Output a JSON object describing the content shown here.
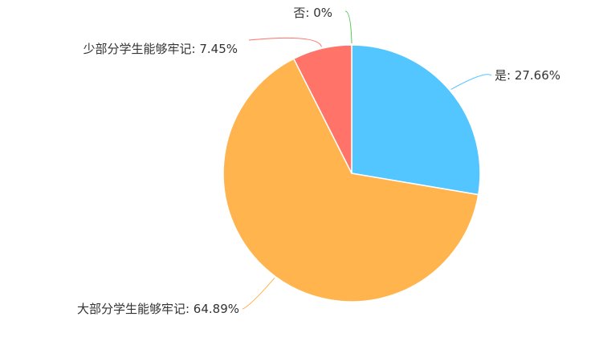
{
  "chart_data": {
    "type": "pie",
    "slices": [
      {
        "label": "是: 27.66%",
        "name": "是",
        "value": 27.66,
        "color": "#53c5ff"
      },
      {
        "label": "大部分学生能够牢记: 64.89%",
        "name": "大部分学生能够牢记",
        "value": 64.89,
        "color": "#ffb44e"
      },
      {
        "label": "少部分学生能够牢记: 7.45%",
        "name": "少部分学生能够牢记",
        "value": 7.45,
        "color": "#ff7369"
      },
      {
        "label": "否: 0%",
        "name": "否",
        "value": 0,
        "color": "#56c759"
      }
    ],
    "start_angle": "12 o'clock",
    "direction": "clockwise",
    "label_position": "outside with leader lines",
    "legend": "none"
  }
}
